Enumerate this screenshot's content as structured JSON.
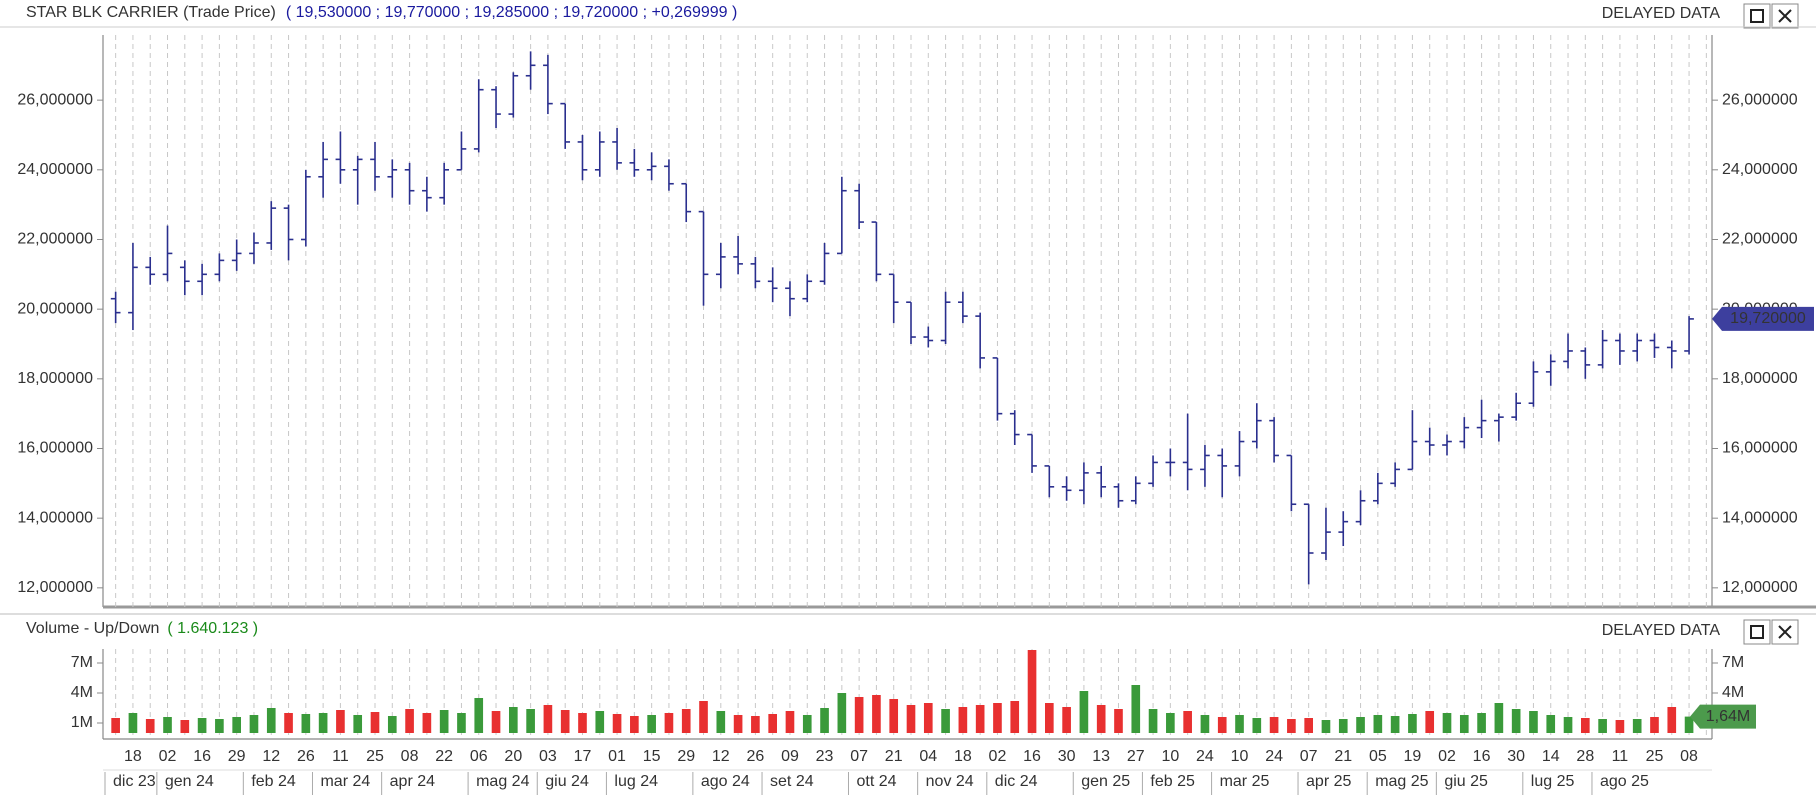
{
  "header": {
    "title": "STAR BLK CARRIER (Trade Price)",
    "quote": "( 19,530000 ;  19,770000 ;  19,285000 ;  19,720000 ;  +0,269999 )",
    "status": "DELAYED DATA"
  },
  "chart_data": [
    {
      "type": "ohlc",
      "color": "#2a2f8e",
      "grid": {
        "x": true,
        "y": false
      },
      "ylim": [
        11.45,
        27.87
      ],
      "yticks": [
        {
          "value": 12,
          "label": "12,000000"
        },
        {
          "value": 14,
          "label": "14,000000"
        },
        {
          "value": 16,
          "label": "16,000000"
        },
        {
          "value": 18,
          "label": "18,000000"
        },
        {
          "value": 20,
          "label": "20,000000"
        },
        {
          "value": 22,
          "label": "22,000000"
        },
        {
          "value": 24,
          "label": "24,000000"
        },
        {
          "value": 26,
          "label": "26,000000"
        }
      ],
      "last_label": "19,720000",
      "last_color": "#3d3f9e",
      "open": [
        20.3,
        19.9,
        21.2,
        21.0,
        21.2,
        20.8,
        21.0,
        21.4,
        21.6,
        21.9,
        22.9,
        22.0,
        23.8,
        24.3,
        24.0,
        24.3,
        23.8,
        24.0,
        23.4,
        23.2,
        24.0,
        24.6,
        26.3,
        25.6,
        26.7,
        27.0,
        25.9,
        24.8,
        24.0,
        24.8,
        24.2,
        24.0,
        24.1,
        23.6,
        22.8,
        21.0,
        21.5,
        21.3,
        20.8,
        20.6,
        20.3,
        20.8,
        21.6,
        23.4,
        22.5,
        21.0,
        20.2,
        19.2,
        19.1,
        20.2,
        19.8,
        18.6,
        17.0,
        16.4,
        15.5,
        14.9,
        14.8,
        15.3,
        14.9,
        14.5,
        15.0,
        15.6,
        15.6,
        15.4,
        15.8,
        15.5,
        16.2,
        16.8,
        15.8,
        14.4,
        13.0,
        13.6,
        13.9,
        14.5,
        15.0,
        15.4,
        16.2,
        16.1,
        16.2,
        16.6,
        16.8,
        16.9,
        17.3,
        18.2,
        18.5,
        18.8,
        18.4,
        19.1,
        18.8,
        19.1,
        18.9,
        18.8,
        null
      ],
      "high": [
        20.5,
        21.9,
        21.5,
        22.4,
        21.4,
        21.3,
        21.6,
        22.0,
        22.2,
        23.1,
        23.0,
        24.0,
        24.8,
        25.1,
        24.4,
        24.8,
        24.3,
        24.2,
        23.8,
        24.2,
        25.1,
        26.6,
        26.4,
        26.8,
        27.4,
        27.3,
        25.9,
        25.0,
        25.1,
        25.2,
        24.6,
        24.5,
        24.3,
        23.6,
        22.8,
        21.9,
        22.1,
        21.5,
        21.2,
        20.8,
        21.0,
        21.9,
        23.8,
        23.6,
        22.5,
        21.0,
        20.2,
        19.5,
        20.5,
        20.5,
        19.9,
        18.6,
        17.1,
        16.4,
        15.5,
        15.2,
        15.6,
        15.5,
        15.0,
        15.2,
        15.8,
        16.0,
        17.0,
        16.1,
        16.0,
        16.5,
        17.3,
        16.9,
        15.8,
        14.4,
        14.3,
        14.2,
        14.8,
        15.3,
        15.6,
        17.1,
        16.6,
        16.4,
        16.9,
        17.4,
        17.0,
        17.6,
        18.5,
        18.7,
        19.3,
        18.9,
        19.4,
        19.3,
        19.3,
        19.3,
        19.1,
        19.8,
        null
      ],
      "low": [
        19.6,
        19.4,
        20.7,
        20.8,
        20.4,
        20.4,
        20.8,
        21.1,
        21.3,
        21.7,
        21.4,
        21.8,
        23.2,
        23.6,
        23.0,
        23.4,
        23.2,
        23.0,
        22.8,
        23.0,
        24.0,
        24.5,
        25.2,
        25.5,
        26.3,
        25.6,
        24.6,
        23.7,
        23.8,
        24.0,
        23.8,
        23.7,
        23.4,
        22.5,
        20.1,
        20.6,
        21.0,
        20.6,
        20.2,
        19.8,
        20.2,
        20.7,
        21.6,
        22.3,
        20.8,
        19.6,
        19.0,
        18.9,
        19.0,
        19.6,
        18.3,
        16.8,
        16.1,
        15.3,
        14.6,
        14.5,
        14.4,
        14.6,
        14.3,
        14.4,
        14.9,
        15.2,
        14.8,
        14.9,
        14.6,
        15.2,
        16.0,
        15.6,
        14.2,
        12.1,
        12.8,
        13.2,
        13.8,
        14.4,
        14.9,
        15.4,
        15.8,
        15.8,
        16.0,
        16.3,
        16.2,
        16.8,
        17.2,
        17.8,
        18.3,
        18.0,
        18.3,
        18.4,
        18.5,
        18.6,
        18.3,
        18.7,
        null
      ],
      "close": [
        19.9,
        21.2,
        21.0,
        21.6,
        20.8,
        21.0,
        21.4,
        21.6,
        21.9,
        22.9,
        22.0,
        23.8,
        24.3,
        24.0,
        24.3,
        23.8,
        24.0,
        23.4,
        23.2,
        24.0,
        24.6,
        26.3,
        25.6,
        26.7,
        27.0,
        25.9,
        24.8,
        24.0,
        24.8,
        24.2,
        24.0,
        24.1,
        23.6,
        22.8,
        21.0,
        21.5,
        21.3,
        20.8,
        20.6,
        20.3,
        20.8,
        21.6,
        23.4,
        22.5,
        21.0,
        20.2,
        19.2,
        19.1,
        20.2,
        19.8,
        18.6,
        17.0,
        16.4,
        15.5,
        14.9,
        14.8,
        15.3,
        14.9,
        14.5,
        15.0,
        15.6,
        15.6,
        15.4,
        15.8,
        15.5,
        16.2,
        16.8,
        15.8,
        14.4,
        13.0,
        13.6,
        13.9,
        14.5,
        15.0,
        15.4,
        16.2,
        16.1,
        16.2,
        16.6,
        16.8,
        16.9,
        17.3,
        18.2,
        18.5,
        18.8,
        18.4,
        19.1,
        18.8,
        19.1,
        18.9,
        18.8,
        19.72,
        null
      ]
    },
    {
      "type": "bar",
      "title": "Volume - Up/Down",
      "subtitle": "( 1.640.123 )",
      "status": "DELAYED DATA",
      "up_color": "#3a9a3a",
      "down_color": "#e83030",
      "last_color": "#4c9a4c",
      "grid": {
        "x": true,
        "y": false
      },
      "ylim": [
        -0.4,
        8.4
      ],
      "yticks": [
        {
          "value": 1,
          "label": "1M"
        },
        {
          "value": 4,
          "label": "4M"
        },
        {
          "value": 7,
          "label": "7M"
        }
      ],
      "last_label": "1,64M",
      "categories": [
        null,
        "18",
        null,
        "02",
        null,
        "16",
        null,
        "29",
        null,
        "12",
        null,
        "26",
        null,
        "11",
        null,
        "25",
        null,
        "08",
        null,
        "22",
        null,
        "06",
        null,
        "20",
        null,
        "03",
        null,
        "17",
        null,
        "01",
        null,
        "15",
        null,
        "29",
        null,
        "12",
        null,
        "26",
        null,
        "09",
        null,
        "23",
        null,
        "07",
        null,
        "21",
        null,
        "04",
        null,
        "18",
        null,
        "02",
        null,
        "16",
        null,
        "30",
        null,
        "13",
        null,
        "27",
        null,
        "10",
        null,
        "24",
        null,
        "10",
        null,
        "24",
        null,
        "07",
        null,
        "21",
        null,
        "05",
        null,
        "19",
        null,
        "02",
        null,
        "16",
        null,
        "30",
        null,
        "14",
        null,
        "28",
        null,
        "11",
        null,
        "25",
        null,
        "08",
        null
      ],
      "month_groups": [
        {
          "label": "dic 23",
          "weeks": 3
        },
        {
          "label": "gen 24",
          "weeks": 5
        },
        {
          "label": "feb 24",
          "weeks": 4
        },
        {
          "label": "mar 24",
          "weeks": 4
        },
        {
          "label": "apr 24",
          "weeks": 5
        },
        {
          "label": "mag 24",
          "weeks": 4
        },
        {
          "label": "giu 24",
          "weeks": 4
        },
        {
          "label": "lug 24",
          "weeks": 5
        },
        {
          "label": "ago 24",
          "weeks": 4
        },
        {
          "label": "set 24",
          "weeks": 5
        },
        {
          "label": "ott 24",
          "weeks": 4
        },
        {
          "label": "nov 24",
          "weeks": 4
        },
        {
          "label": "dic 24",
          "weeks": 5
        },
        {
          "label": "gen 25",
          "weeks": 4
        },
        {
          "label": "feb 25",
          "weeks": 4
        },
        {
          "label": "mar 25",
          "weeks": 5
        },
        {
          "label": "apr 25",
          "weeks": 4
        },
        {
          "label": "mag 25",
          "weeks": 4
        },
        {
          "label": "giu 25",
          "weeks": 5
        },
        {
          "label": "lug 25",
          "weeks": 4
        },
        {
          "label": "ago 25",
          "weeks": 4
        }
      ],
      "values": [
        1.5,
        2.0,
        1.4,
        1.6,
        1.3,
        1.5,
        1.4,
        1.6,
        1.8,
        2.5,
        2.0,
        1.9,
        2.0,
        2.3,
        1.8,
        2.1,
        1.7,
        2.4,
        2.0,
        2.3,
        2.0,
        3.5,
        2.2,
        2.6,
        2.4,
        2.8,
        2.3,
        2.0,
        2.2,
        1.9,
        1.7,
        1.8,
        2.0,
        2.4,
        3.2,
        2.2,
        1.8,
        1.7,
        1.9,
        2.2,
        1.8,
        2.5,
        4.0,
        3.6,
        3.8,
        3.4,
        2.8,
        3.0,
        2.4,
        2.6,
        2.8,
        3.0,
        3.2,
        8.3,
        3.0,
        2.6,
        4.2,
        2.8,
        2.4,
        4.8,
        2.4,
        2.0,
        2.2,
        1.8,
        1.6,
        1.8,
        1.5,
        1.6,
        1.4,
        1.5,
        1.3,
        1.4,
        1.6,
        1.8,
        1.7,
        1.9,
        2.2,
        2.0,
        1.8,
        2.0,
        3.0,
        2.4,
        2.2,
        1.8,
        1.6,
        1.5,
        1.4,
        1.3,
        1.4,
        1.6,
        2.6,
        1.640123,
        null
      ]
    }
  ]
}
